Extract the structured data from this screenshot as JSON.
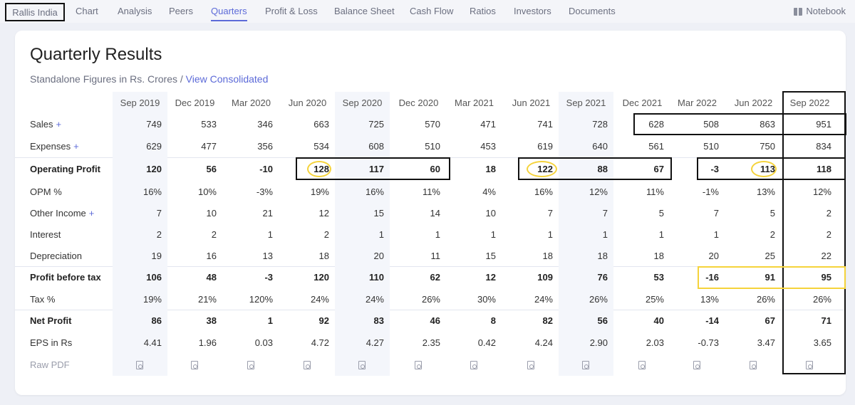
{
  "nav": {
    "company": "Rallis India",
    "items": [
      "Chart",
      "Analysis",
      "Peers",
      "Quarters",
      "Profit & Loss",
      "Balance Sheet",
      "Cash Flow",
      "Ratios",
      "Investors",
      "Documents"
    ],
    "active": "Quarters",
    "notebook": "Notebook"
  },
  "section": {
    "title": "Quarterly Results",
    "subtitle_text": "Standalone Figures in Rs. Crores /",
    "subtitle_link": "View Consolidated"
  },
  "table": {
    "columns": [
      "Sep 2019",
      "Dec 2019",
      "Mar 2020",
      "Jun 2020",
      "Sep 2020",
      "Dec 2020",
      "Mar 2021",
      "Jun 2021",
      "Sep 2021",
      "Dec 2021",
      "Mar 2022",
      "Jun 2022",
      "Sep 2022"
    ],
    "rows": [
      {
        "label": "Sales",
        "expandable": true,
        "bold": false,
        "values": [
          "749",
          "533",
          "346",
          "663",
          "725",
          "570",
          "471",
          "741",
          "728",
          "628",
          "508",
          "863",
          "951"
        ]
      },
      {
        "label": "Expenses",
        "expandable": true,
        "bold": false,
        "values": [
          "629",
          "477",
          "356",
          "534",
          "608",
          "510",
          "453",
          "619",
          "640",
          "561",
          "510",
          "750",
          "834"
        ]
      },
      {
        "label": "Operating Profit",
        "expandable": false,
        "bold": true,
        "values": [
          "120",
          "56",
          "-10",
          "128",
          "117",
          "60",
          "18",
          "122",
          "88",
          "67",
          "-3",
          "113",
          "118"
        ]
      },
      {
        "label": "OPM %",
        "expandable": false,
        "bold": false,
        "values": [
          "16%",
          "10%",
          "-3%",
          "19%",
          "16%",
          "11%",
          "4%",
          "16%",
          "12%",
          "11%",
          "-1%",
          "13%",
          "12%"
        ]
      },
      {
        "label": "Other Income",
        "expandable": true,
        "bold": false,
        "values": [
          "7",
          "10",
          "21",
          "12",
          "15",
          "14",
          "10",
          "7",
          "7",
          "5",
          "7",
          "5",
          "2"
        ]
      },
      {
        "label": "Interest",
        "expandable": false,
        "bold": false,
        "values": [
          "2",
          "2",
          "1",
          "2",
          "1",
          "1",
          "1",
          "1",
          "1",
          "1",
          "1",
          "2",
          "2"
        ]
      },
      {
        "label": "Depreciation",
        "expandable": false,
        "bold": false,
        "values": [
          "19",
          "16",
          "13",
          "18",
          "20",
          "11",
          "15",
          "18",
          "18",
          "18",
          "20",
          "25",
          "22"
        ]
      },
      {
        "label": "Profit before tax",
        "expandable": false,
        "bold": true,
        "values": [
          "106",
          "48",
          "-3",
          "120",
          "110",
          "62",
          "12",
          "109",
          "76",
          "53",
          "-16",
          "91",
          "95"
        ]
      },
      {
        "label": "Tax %",
        "expandable": false,
        "bold": false,
        "values": [
          "19%",
          "21%",
          "120%",
          "24%",
          "24%",
          "26%",
          "30%",
          "24%",
          "26%",
          "25%",
          "13%",
          "26%",
          "26%"
        ]
      },
      {
        "label": "Net Profit",
        "expandable": false,
        "bold": true,
        "values": [
          "86",
          "38",
          "1",
          "92",
          "83",
          "46",
          "8",
          "82",
          "56",
          "40",
          "-14",
          "67",
          "71"
        ]
      },
      {
        "label": "EPS in Rs",
        "expandable": false,
        "bold": false,
        "values": [
          "4.41",
          "1.96",
          "0.03",
          "4.72",
          "4.27",
          "2.35",
          "0.42",
          "4.24",
          "2.90",
          "2.03",
          "-0.73",
          "3.47",
          "3.65"
        ]
      }
    ],
    "raw_pdf_label": "Raw PDF",
    "plus_symbol": "+"
  },
  "colors": {
    "accent": "#5c6ad8",
    "annotation_black": "#111111",
    "annotation_yellow": "#f5d33b"
  }
}
